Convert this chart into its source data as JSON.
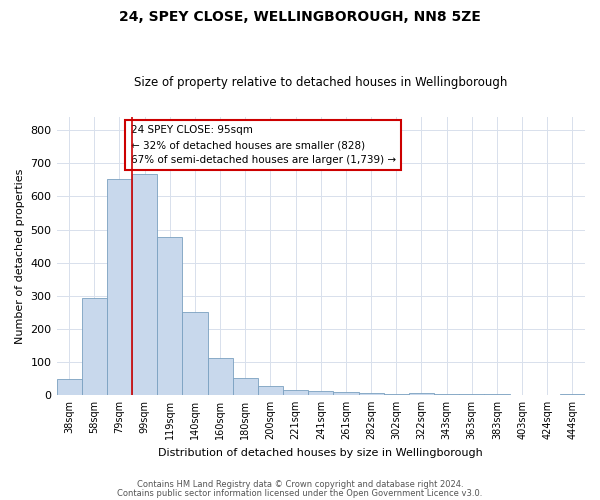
{
  "title": "24, SPEY CLOSE, WELLINGBOROUGH, NN8 5ZE",
  "subtitle": "Size of property relative to detached houses in Wellingborough",
  "xlabel": "Distribution of detached houses by size in Wellingborough",
  "ylabel": "Number of detached properties",
  "bin_labels": [
    "38sqm",
    "58sqm",
    "79sqm",
    "99sqm",
    "119sqm",
    "140sqm",
    "160sqm",
    "180sqm",
    "200sqm",
    "221sqm",
    "241sqm",
    "261sqm",
    "282sqm",
    "302sqm",
    "322sqm",
    "343sqm",
    "363sqm",
    "383sqm",
    "403sqm",
    "424sqm",
    "444sqm"
  ],
  "bin_values": [
    47,
    293,
    652,
    668,
    478,
    250,
    113,
    50,
    27,
    15,
    13,
    8,
    6,
    4,
    5,
    4,
    3,
    2,
    1,
    1,
    4
  ],
  "bar_color": "#c8d8ec",
  "bar_edge_color": "#7aa0c0",
  "vline_color": "#cc0000",
  "annotation_line1": "24 SPEY CLOSE: 95sqm",
  "annotation_line2": "← 32% of detached houses are smaller (828)",
  "annotation_line3": "67% of semi-detached houses are larger (1,739) →",
  "annotation_box_edge": "#cc0000",
  "grid_color": "#d8e0ec",
  "ylim": [
    0,
    840
  ],
  "yticks": [
    0,
    100,
    200,
    300,
    400,
    500,
    600,
    700,
    800
  ],
  "footer1": "Contains HM Land Registry data © Crown copyright and database right 2024.",
  "footer2": "Contains public sector information licensed under the Open Government Licence v3.0.",
  "bg_color": "#ffffff",
  "plot_bg_color": "#ffffff"
}
